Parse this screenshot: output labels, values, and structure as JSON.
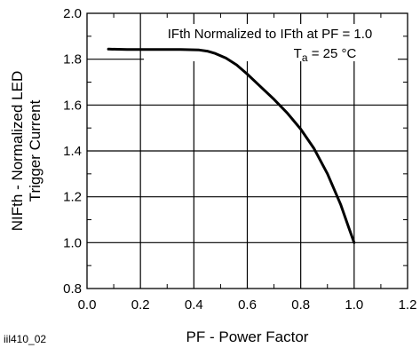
{
  "figure_id": "iil410_02",
  "chart_data": {
    "type": "line",
    "xlabel": "PF - Power Factor",
    "ylabel_line1": "NIFth - Normalized LED",
    "ylabel_line2": "Trigger Current",
    "xlim": [
      0.0,
      1.2
    ],
    "ylim": [
      0.8,
      2.0
    ],
    "x_ticks": [
      "0.0",
      "0.2",
      "0.4",
      "0.6",
      "0.8",
      "1.0",
      "1.2"
    ],
    "y_ticks": [
      "0.8",
      "1.0",
      "1.2",
      "1.4",
      "1.6",
      "1.8",
      "2.0"
    ],
    "x_tick_values": [
      0.0,
      0.2,
      0.4,
      0.6,
      0.8,
      1.0,
      1.2
    ],
    "y_tick_values": [
      0.8,
      1.0,
      1.2,
      1.4,
      1.6,
      1.8,
      2.0
    ],
    "grid": true,
    "annotation_line1": "IFth Normalized to IFth at PF = 1.0",
    "annotation_line2_main": "T",
    "annotation_line2_sub": "a",
    "annotation_line2_rest": " = 25 °C",
    "series": [
      {
        "x": [
          0.08,
          0.15,
          0.25,
          0.35,
          0.42,
          0.45,
          0.48,
          0.52,
          0.56,
          0.6,
          0.65,
          0.7,
          0.75,
          0.8,
          0.85,
          0.9,
          0.95,
          0.98,
          1.0
        ],
        "y": [
          1.844,
          1.842,
          1.842,
          1.842,
          1.84,
          1.835,
          1.825,
          1.805,
          1.775,
          1.735,
          1.68,
          1.625,
          1.565,
          1.495,
          1.41,
          1.3,
          1.165,
          1.065,
          1.0
        ]
      }
    ]
  }
}
